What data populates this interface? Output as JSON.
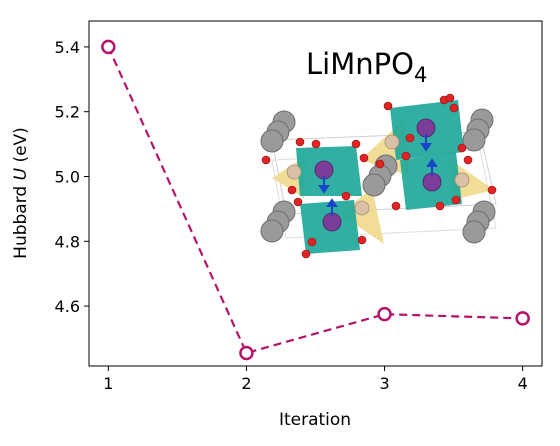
{
  "chart_data": {
    "type": "line",
    "title": "",
    "xlabel": "Iteration",
    "ylabel_prefix": "Hubbard ",
    "ylabel_var": "U",
    "ylabel_suffix": " (eV)",
    "x": [
      1,
      2,
      3,
      4
    ],
    "y": [
      5.4,
      4.455,
      4.575,
      4.562
    ],
    "xlim": [
      0.86,
      4.14
    ],
    "ylim": [
      4.415,
      5.48
    ],
    "xticks": [
      1,
      2,
      3,
      4
    ],
    "xtick_labels": [
      "1",
      "2",
      "3",
      "4"
    ],
    "yticks": [
      4.6,
      4.8,
      5.0,
      5.2,
      5.4
    ],
    "ytick_labels": [
      "4.6",
      "4.8",
      "5.0",
      "5.2",
      "5.4"
    ],
    "line_style": "dashed",
    "marker": "open-circle",
    "color": "#b5136a",
    "grid": false,
    "annotation": {
      "base": "LiMnPO",
      "subscript": "4"
    },
    "inset": "crystal-structure"
  }
}
